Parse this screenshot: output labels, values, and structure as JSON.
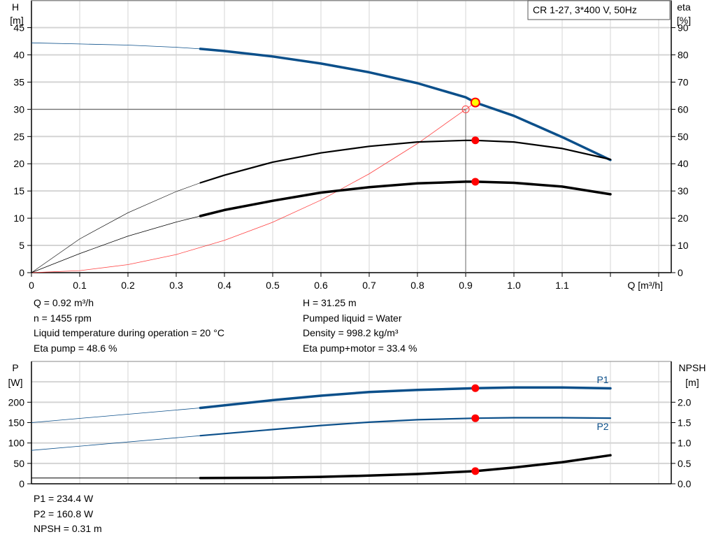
{
  "colors": {
    "head": "#0b4f8a",
    "eta": "#000000",
    "system": "#ff4040",
    "point": "#ff0000",
    "duty_point_fill": "#ffff00",
    "grid": "#d4d4d4",
    "power": "#0b4f8a",
    "npsh": "#000000"
  },
  "chart_data": [
    {
      "type": "line",
      "legend_box": "CR 1-27, 3*400 V, 50Hz",
      "xlabel": "Q [m³/h]",
      "ylabel_left": [
        "H",
        "[m]"
      ],
      "ylabel_right": [
        "eta",
        "[%]"
      ],
      "xlim": [
        0,
        1.3
      ],
      "ylim_left": [
        0,
        50
      ],
      "ylim_right": [
        0,
        100
      ],
      "x_ticks": [
        "0",
        "0.1",
        "0.2",
        "0.3",
        "0.4",
        "0.5",
        "0.6",
        "0.7",
        "0.8",
        "0.9",
        "1.0",
        "1.1"
      ],
      "y_ticks_left": [
        "0",
        "5",
        "10",
        "15",
        "20",
        "25",
        "30",
        "35",
        "40",
        "45"
      ],
      "y_ticks_right": [
        "0",
        "10",
        "20",
        "30",
        "40",
        "50",
        "60",
        "70",
        "80",
        "90"
      ],
      "grid": true,
      "operating_range_start_q": 0.35,
      "series": [
        {
          "id": "head",
          "axis": "left",
          "x": [
            0,
            0.1,
            0.2,
            0.3,
            0.35,
            0.4,
            0.5,
            0.6,
            0.7,
            0.8,
            0.9,
            0.92,
            1.0,
            1.1,
            1.2
          ],
          "y": [
            42.2,
            42.0,
            41.8,
            41.4,
            41.1,
            40.7,
            39.7,
            38.4,
            36.8,
            34.8,
            32.2,
            31.25,
            28.8,
            24.9,
            20.7
          ]
        },
        {
          "id": "eta-pump",
          "axis": "right",
          "x": [
            0,
            0.1,
            0.2,
            0.3,
            0.35,
            0.4,
            0.5,
            0.6,
            0.7,
            0.8,
            0.9,
            0.92,
            1.0,
            1.1,
            1.2
          ],
          "y": [
            0,
            12.4,
            22,
            29.8,
            33,
            35.8,
            40.6,
            44,
            46.4,
            48,
            48.6,
            48.6,
            48,
            45.6,
            41.6
          ]
        },
        {
          "id": "eta-pump-motor",
          "axis": "right",
          "x": [
            0,
            0.1,
            0.2,
            0.3,
            0.35,
            0.4,
            0.5,
            0.6,
            0.7,
            0.8,
            0.9,
            0.92,
            1.0,
            1.1,
            1.2
          ],
          "y": [
            0,
            7,
            13.4,
            18.6,
            20.8,
            23,
            26.4,
            29.4,
            31.4,
            32.8,
            33.4,
            33.4,
            33,
            31.6,
            28.8
          ]
        }
      ],
      "system_curve": {
        "x": [
          0,
          0.1,
          0.2,
          0.3,
          0.4,
          0.5,
          0.6,
          0.7,
          0.8,
          0.9,
          0.92
        ],
        "y": [
          0,
          0.37,
          1.48,
          3.33,
          5.93,
          9.26,
          13.33,
          18.15,
          23.7,
          30.0,
          31.25
        ]
      },
      "duty_point": {
        "q": 0.92,
        "h": 31.25,
        "eta_pump": 48.6,
        "eta_pump_motor": 33.4
      },
      "reference_point": {
        "q": 0.9,
        "h": 30
      }
    },
    {
      "type": "line",
      "ylabel_left": [
        "P",
        "[W]"
      ],
      "ylabel_right": [
        "NPSH",
        "[m]"
      ],
      "xlim": [
        0,
        1.3
      ],
      "ylim_left": [
        0,
        300
      ],
      "ylim_right": [
        0,
        3.0
      ],
      "y_ticks_left": [
        "0",
        "50",
        "100",
        "150",
        "200"
      ],
      "y_ticks_right": [
        "0.0",
        "0.5",
        "1.0",
        "1.5",
        "2.0"
      ],
      "grid": true,
      "series": [
        {
          "id": "P1",
          "name": "P1",
          "axis": "left",
          "x": [
            0,
            0.35,
            0.5,
            0.6,
            0.7,
            0.8,
            0.92,
            1.0,
            1.1,
            1.2
          ],
          "y": [
            150,
            186,
            205,
            216,
            225,
            230,
            234.4,
            236,
            236,
            234
          ]
        },
        {
          "id": "P2",
          "name": "P2",
          "axis": "left",
          "x": [
            0,
            0.35,
            0.5,
            0.6,
            0.7,
            0.8,
            0.92,
            1.0,
            1.1,
            1.2
          ],
          "y": [
            82,
            118,
            133,
            143,
            151,
            157,
            160.8,
            162,
            162,
            161
          ]
        },
        {
          "id": "NPSH",
          "axis": "right",
          "x": [
            0,
            0.35,
            0.5,
            0.6,
            0.7,
            0.8,
            0.92,
            1.0,
            1.1,
            1.2
          ],
          "y": [
            0.14,
            0.14,
            0.15,
            0.17,
            0.2,
            0.24,
            0.31,
            0.4,
            0.53,
            0.7
          ]
        }
      ],
      "duty_point": {
        "q": 0.92,
        "p1": 234.4,
        "p2": 160.8,
        "npsh": 0.31
      }
    }
  ],
  "info_top_left": [
    "Q = 0.92 m³/h",
    "n = 1455 rpm",
    "Liquid temperature during operation = 20 °C",
    "Eta pump = 48.6 %"
  ],
  "info_top_right": [
    "H = 31.25 m",
    "Pumped liquid = Water",
    "Density = 998.2 kg/m³",
    "Eta pump+motor = 33.4 %"
  ],
  "info_bottom": [
    "P1 = 234.4 W",
    "P2 = 160.8 W",
    "NPSH = 0.31 m"
  ]
}
